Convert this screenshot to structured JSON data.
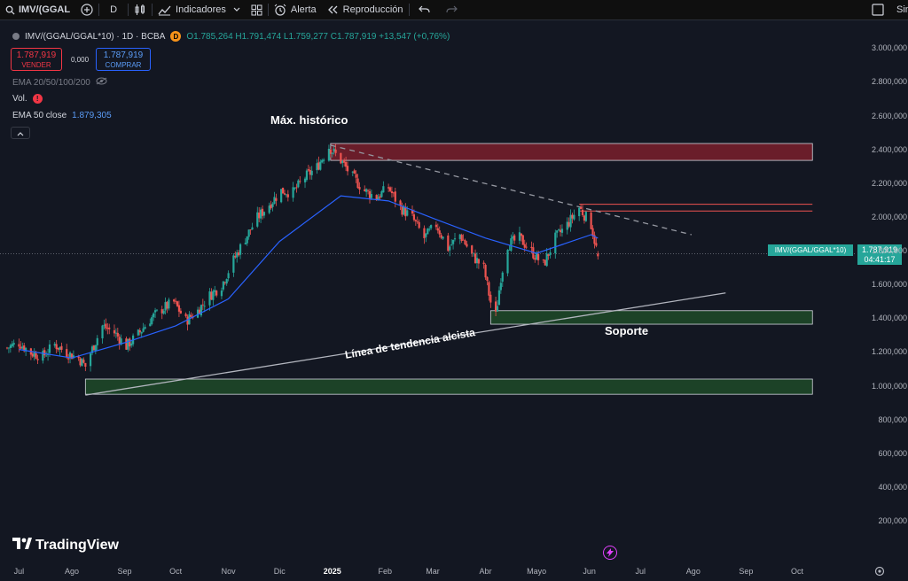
{
  "toolbar": {
    "symbol": "IMV/(GGAL",
    "interval": "D",
    "indicators_label": "Indicadores",
    "alert_label": "Alerta",
    "replay_label": "Reproducción",
    "right_label": "Sin"
  },
  "legend": {
    "title": "IMV/(GGAL/GGAL*10) · 1D · BCBA",
    "badge": "D",
    "ohlc": "O1.785,264 H1.791,474 L1.759,277 C1.787,919 +13,547 (+0,76%)"
  },
  "trade": {
    "sell_price": "1.787,919",
    "sell_label": "VENDER",
    "spread": "0,000",
    "buy_price": "1.787,919",
    "buy_label": "COMPRAR"
  },
  "indicators": {
    "ema_group": "EMA 20/50/100/200",
    "vol": "Vol.",
    "ema50_label": "EMA 50 close",
    "ema50_value": "1.879,305"
  },
  "annotations": {
    "ath": "Máx. histórico",
    "support": "Soporte",
    "trendline": "Línea de tendencia alcista"
  },
  "last_price": {
    "symbol_tag": "IMV/(GGAL/GGAL*10)",
    "value": "1.787,919",
    "countdown": "04:41:17"
  },
  "brand": "TradingView",
  "colors": {
    "up": "#26a69a",
    "down": "#ef5350",
    "ema": "#2962ff",
    "resistance_zone": "#7a1e2c",
    "support_zone": "#1e4a28"
  },
  "chart_data": {
    "type": "candlestick",
    "title": "IMV/(GGAL/GGAL*10) · 1D · BCBA",
    "y_ticks": [
      200000,
      400000,
      600000,
      800000,
      1000000,
      1200000,
      1400000,
      1600000,
      1800000,
      2000000,
      2200000,
      2400000,
      2600000,
      2800000,
      3000000
    ],
    "y_tick_labels": [
      "200,000",
      "400,000",
      "600,000",
      "800,000",
      "1.000,000",
      "1.200,000",
      "1.400,000",
      "1.600,000",
      "1.800,000",
      "2.000,000",
      "2.200,000",
      "2.400,000",
      "2.600,000",
      "2.800,000",
      "3.000,000"
    ],
    "ylim": [
      80000,
      3080000
    ],
    "x_labels": [
      "Jul",
      "Ago",
      "Sep",
      "Oct",
      "Nov",
      "Dic",
      "2025",
      "Feb",
      "Mar",
      "Abr",
      "Mayo",
      "Jun",
      "Jul",
      "Ago",
      "Sep",
      "Oct"
    ],
    "close_series": [
      [
        "2024-06-24",
        1230000
      ],
      [
        "2024-07-01",
        1260000
      ],
      [
        "2024-07-08",
        1200000
      ],
      [
        "2024-07-15",
        1180000
      ],
      [
        "2024-07-22",
        1250000
      ],
      [
        "2024-07-29",
        1200000
      ],
      [
        "2024-08-05",
        1170000
      ],
      [
        "2024-08-09",
        1120000
      ],
      [
        "2024-08-12",
        1200000
      ],
      [
        "2024-08-19",
        1360000
      ],
      [
        "2024-08-26",
        1320000
      ],
      [
        "2024-09-02",
        1240000
      ],
      [
        "2024-09-09",
        1310000
      ],
      [
        "2024-09-16",
        1400000
      ],
      [
        "2024-09-23",
        1460000
      ],
      [
        "2024-09-30",
        1500000
      ],
      [
        "2024-10-07",
        1390000
      ],
      [
        "2024-10-14",
        1450000
      ],
      [
        "2024-10-21",
        1540000
      ],
      [
        "2024-10-28",
        1600000
      ],
      [
        "2024-11-04",
        1750000
      ],
      [
        "2024-11-11",
        1880000
      ],
      [
        "2024-11-18",
        2000000
      ],
      [
        "2024-11-25",
        2080000
      ],
      [
        "2024-12-02",
        2160000
      ],
      [
        "2024-12-09",
        2150000
      ],
      [
        "2024-12-16",
        2240000
      ],
      [
        "2024-12-23",
        2300000
      ],
      [
        "2024-12-30",
        2420000
      ],
      [
        "2025-01-06",
        2340000
      ],
      [
        "2025-01-13",
        2240000
      ],
      [
        "2025-01-20",
        2160000
      ],
      [
        "2025-01-27",
        2120000
      ],
      [
        "2025-02-03",
        2180000
      ],
      [
        "2025-02-10",
        2060000
      ],
      [
        "2025-02-17",
        2000000
      ],
      [
        "2025-02-24",
        1880000
      ],
      [
        "2025-03-03",
        1960000
      ],
      [
        "2025-03-10",
        1820000
      ],
      [
        "2025-03-17",
        1900000
      ],
      [
        "2025-03-24",
        1780000
      ],
      [
        "2025-03-31",
        1700000
      ],
      [
        "2025-04-04",
        1500000
      ],
      [
        "2025-04-07",
        1420000
      ],
      [
        "2025-04-10",
        1650000
      ],
      [
        "2025-04-14",
        1840000
      ],
      [
        "2025-04-21",
        1880000
      ],
      [
        "2025-04-28",
        1800000
      ],
      [
        "2025-05-05",
        1720000
      ],
      [
        "2025-05-12",
        1880000
      ],
      [
        "2025-05-19",
        1960000
      ],
      [
        "2025-05-26",
        2060000
      ],
      [
        "2025-06-02",
        1960000
      ],
      [
        "2025-06-05",
        1820000
      ],
      [
        "2025-06-06",
        1787919
      ]
    ],
    "ema50": [
      [
        "2024-07-01",
        1220000
      ],
      [
        "2024-08-01",
        1170000
      ],
      [
        "2024-09-01",
        1260000
      ],
      [
        "2024-10-01",
        1360000
      ],
      [
        "2024-11-01",
        1520000
      ],
      [
        "2024-12-01",
        1860000
      ],
      [
        "2025-01-06",
        2130000
      ],
      [
        "2025-02-03",
        2100000
      ],
      [
        "2025-03-03",
        1990000
      ],
      [
        "2025-04-01",
        1880000
      ],
      [
        "2025-05-01",
        1790000
      ],
      [
        "2025-06-02",
        1900000
      ],
      [
        "2025-06-06",
        1879305
      ]
    ],
    "zones": [
      {
        "kind": "resistance",
        "from": "2024-12-31",
        "to": "2025-10-10",
        "low": 2340000,
        "high": 2440000
      },
      {
        "kind": "resistance_lines",
        "from": "2025-05-26",
        "to": "2025-10-10",
        "low": 2040000,
        "high": 2080000
      },
      {
        "kind": "support",
        "from": "2025-04-04",
        "to": "2025-10-10",
        "low": 1370000,
        "high": 1450000
      },
      {
        "kind": "support",
        "from": "2024-08-09",
        "to": "2025-10-10",
        "low": 955000,
        "high": 1045000
      }
    ],
    "lines": [
      {
        "kind": "trendline",
        "from": [
          "2024-08-09",
          950000
        ],
        "to": [
          "2025-08-20",
          1555000
        ]
      },
      {
        "kind": "dashed_resistance",
        "from": [
          "2024-12-31",
          2430000
        ],
        "to": [
          "2025-07-31",
          1900000
        ]
      }
    ],
    "last_value": 1787919
  }
}
